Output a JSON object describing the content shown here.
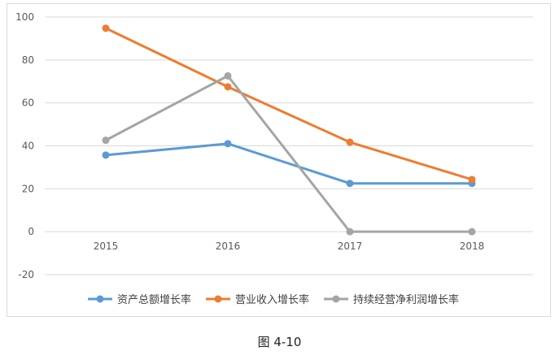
{
  "caption": "图 4-10",
  "chart_data": {
    "type": "line",
    "categories": [
      "2015",
      "2016",
      "2017",
      "2018"
    ],
    "ylim": [
      -20,
      100
    ],
    "yticks": [
      100,
      80,
      60,
      40,
      20,
      0,
      -20
    ],
    "grid": true,
    "legend_position": "bottom",
    "series": [
      {
        "name": "资产总额增长率",
        "color": "#5b9bd5",
        "values": [
          35.7,
          41.0,
          22.5,
          22.5
        ]
      },
      {
        "name": "营业收入增长率",
        "color": "#ed7d31",
        "values": [
          94.8,
          67.5,
          41.7,
          24.3
        ]
      },
      {
        "name": "持续经营净利润增长率",
        "color": "#a5a5a5",
        "values": [
          42.6,
          72.6,
          0.0,
          0.0
        ]
      }
    ]
  }
}
